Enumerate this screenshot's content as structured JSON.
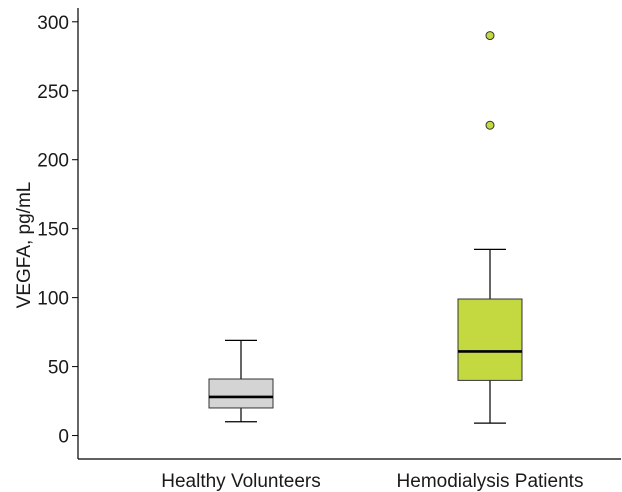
{
  "chart_data": {
    "type": "box",
    "title": "",
    "xlabel": "",
    "ylabel": "VEGFA, pg/mL",
    "ylim": [
      -17,
      310
    ],
    "yticks": [
      0,
      50,
      100,
      150,
      200,
      250,
      300
    ],
    "grid": false,
    "legend": "none",
    "categories": [
      "Healthy Volunteers",
      "Hemodialysis Patients"
    ],
    "series": [
      {
        "category": "Healthy Volunteers",
        "min": 10,
        "q1": 20,
        "median": 28,
        "q3": 41,
        "max": 69,
        "outliers": [],
        "color": "#d4d4d4"
      },
      {
        "category": "Hemodialysis Patients",
        "min": 9,
        "q1": 40,
        "median": 61,
        "q3": 99,
        "max": 135,
        "outliers": [
          225,
          290
        ],
        "color": "#c4d93f"
      }
    ]
  }
}
